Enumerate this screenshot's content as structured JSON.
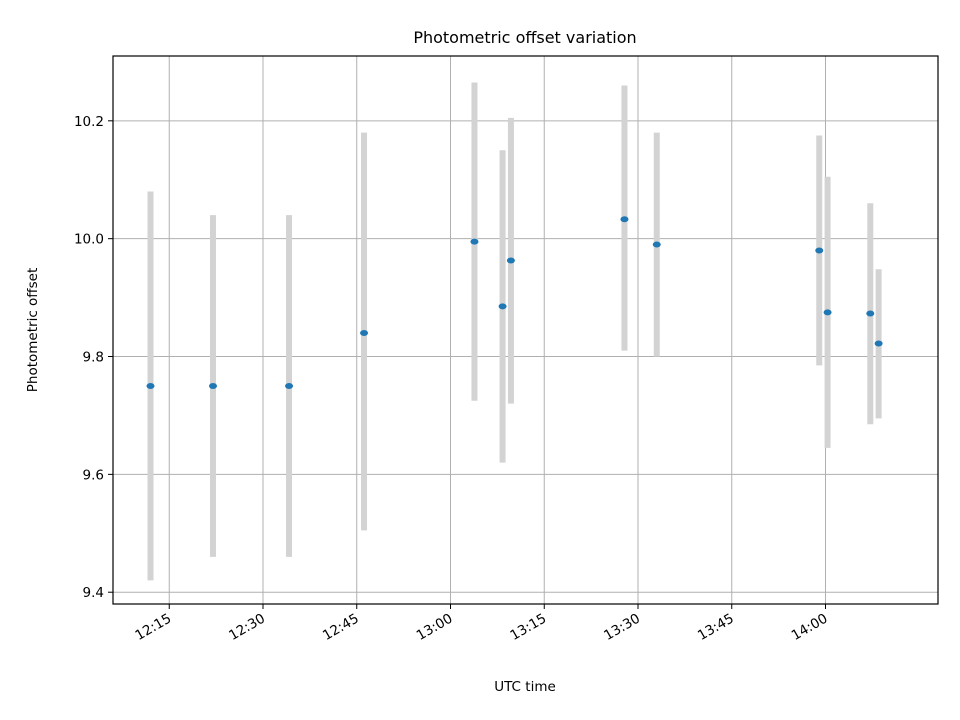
{
  "chart_data": {
    "type": "scatter",
    "title": "Photometric offset variation",
    "xlabel": "UTC time",
    "ylabel": "Photometric offset",
    "x_ticks": [
      "12:15",
      "12:30",
      "12:45",
      "13:00",
      "13:15",
      "13:30",
      "13:45",
      "14:00"
    ],
    "y_ticks": [
      9.4,
      9.6,
      9.8,
      10.0,
      10.2
    ],
    "xlim": [
      "12:06:00",
      "14:18:00"
    ],
    "ylim": [
      9.38,
      10.31
    ],
    "grid": true,
    "colors": {
      "point": "#1f77b4",
      "errorbar": "#d3d3d3",
      "grid": "#b0b0b0"
    },
    "points": [
      {
        "x": "12:12:00",
        "y": 9.75,
        "y_low": 9.42,
        "y_high": 10.08
      },
      {
        "x": "12:22:00",
        "y": 9.75,
        "y_low": 9.46,
        "y_high": 10.04
      },
      {
        "x": "12:34:10",
        "y": 9.75,
        "y_low": 9.46,
        "y_high": 10.04
      },
      {
        "x": "12:46:10",
        "y": 9.84,
        "y_low": 9.505,
        "y_high": 10.18
      },
      {
        "x": "13:03:50",
        "y": 9.995,
        "y_low": 9.725,
        "y_high": 10.265
      },
      {
        "x": "13:08:20",
        "y": 9.885,
        "y_low": 9.62,
        "y_high": 10.15
      },
      {
        "x": "13:09:40",
        "y": 9.963,
        "y_low": 9.72,
        "y_high": 10.205
      },
      {
        "x": "13:27:50",
        "y": 10.033,
        "y_low": 9.81,
        "y_high": 10.26
      },
      {
        "x": "13:33:00",
        "y": 9.99,
        "y_low": 9.8,
        "y_high": 10.18
      },
      {
        "x": "13:59:00",
        "y": 9.98,
        "y_low": 9.785,
        "y_high": 10.175
      },
      {
        "x": "14:00:20",
        "y": 9.875,
        "y_low": 9.645,
        "y_high": 10.105
      },
      {
        "x": "14:07:10",
        "y": 9.873,
        "y_low": 9.685,
        "y_high": 10.06
      },
      {
        "x": "14:08:30",
        "y": 9.822,
        "y_low": 9.695,
        "y_high": 9.948
      }
    ]
  }
}
